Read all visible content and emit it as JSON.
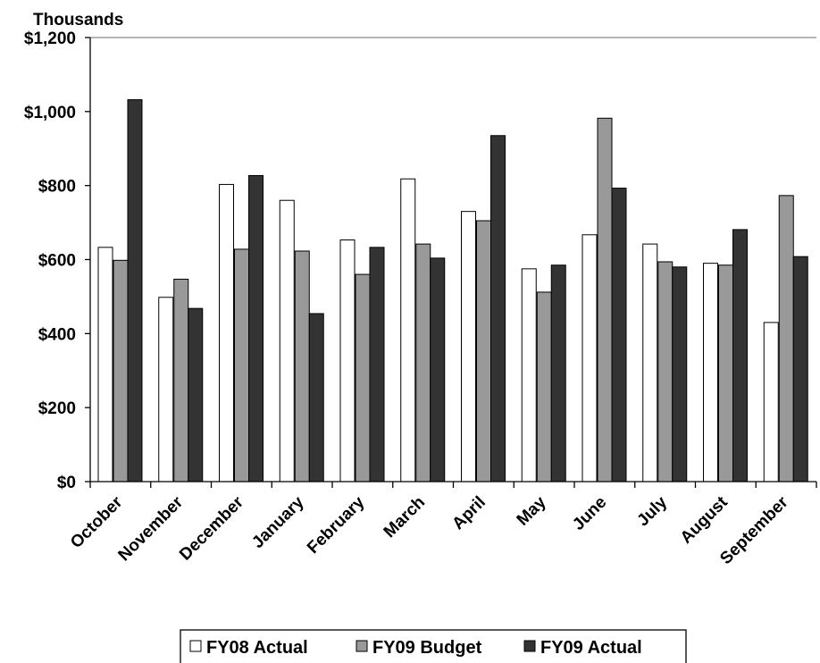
{
  "chart_data": {
    "type": "bar",
    "unit_label": "Thousands",
    "categories": [
      "October",
      "November",
      "December",
      "January",
      "February",
      "March",
      "April",
      "May",
      "June",
      "July",
      "August",
      "September"
    ],
    "series": [
      {
        "name": "FY08 Actual",
        "color": "#ffffff",
        "values": [
          633,
          498,
          803,
          760,
          653,
          818,
          730,
          575,
          667,
          642,
          590,
          430
        ]
      },
      {
        "name": "FY09 Budget",
        "color": "#999999",
        "values": [
          598,
          547,
          628,
          623,
          560,
          642,
          705,
          512,
          982,
          594,
          585,
          773
        ]
      },
      {
        "name": "FY09 Actual",
        "color": "#333333",
        "values": [
          1032,
          468,
          827,
          454,
          633,
          604,
          935,
          585,
          793,
          580,
          681,
          608
        ]
      }
    ],
    "y_tick_labels": [
      "$0",
      "$200",
      "$400",
      "$600",
      "$800",
      "$1,000",
      "$1,200"
    ],
    "y_ticks": [
      0,
      200,
      400,
      600,
      800,
      1000,
      1200
    ],
    "ylim": [
      0,
      1200
    ],
    "grid": false,
    "legend_position": "bottom"
  }
}
